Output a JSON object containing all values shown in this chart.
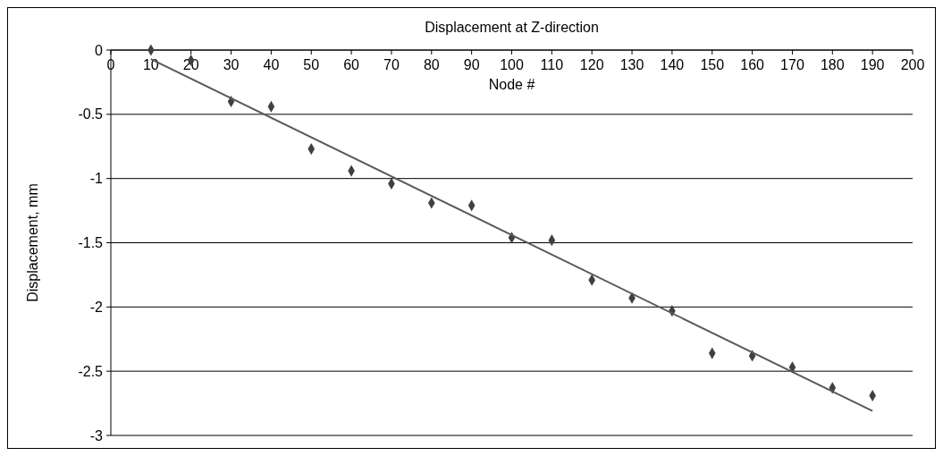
{
  "chart_data": {
    "type": "scatter",
    "title": "Displacement at Z-direction",
    "xlabel": "Node #",
    "ylabel": "Displacement, mm",
    "xlim": [
      0,
      200
    ],
    "xticks": [
      0,
      10,
      20,
      30,
      40,
      50,
      60,
      70,
      80,
      90,
      100,
      110,
      120,
      130,
      140,
      150,
      160,
      170,
      180,
      190,
      200
    ],
    "ylim": [
      -3,
      0
    ],
    "yticks": [
      -3,
      -2.5,
      -2,
      -1.5,
      -1,
      -0.5,
      0
    ],
    "grid": "y",
    "marker": "diamond",
    "series": [
      {
        "color": "#404040",
        "x": [
          10,
          20,
          30,
          40,
          50,
          60,
          70,
          80,
          90,
          100,
          110,
          120,
          130,
          140,
          150,
          160,
          170,
          180,
          190
        ],
        "values": [
          0,
          -0.08,
          -0.4,
          -0.44,
          -0.77,
          -0.94,
          -1.04,
          -1.19,
          -1.21,
          -1.46,
          -1.48,
          -1.79,
          -1.93,
          -2.03,
          -2.36,
          -2.38,
          -2.47,
          -2.63,
          -2.69
        ]
      },
      {
        "type": "line",
        "color": "#595959",
        "marker": "none",
        "x": [
          10,
          190
        ],
        "values": [
          -0.07,
          -2.81
        ]
      }
    ]
  }
}
